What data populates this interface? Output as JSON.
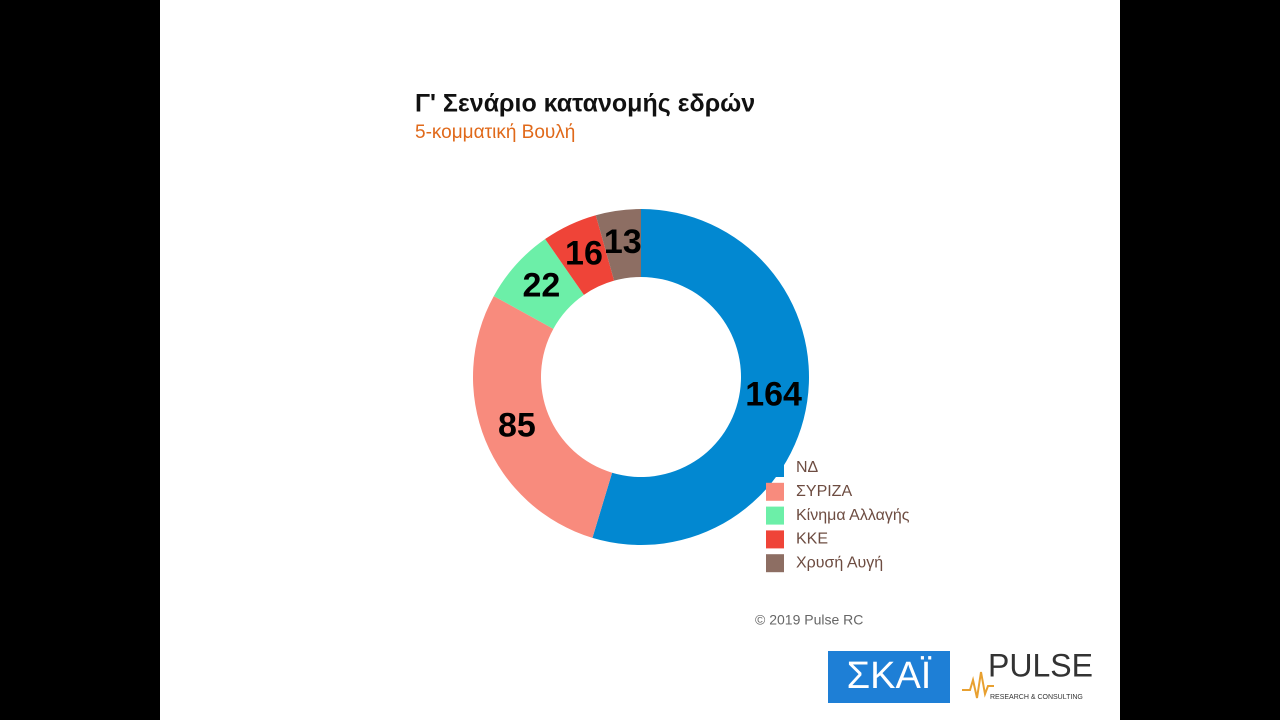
{
  "chart_data": {
    "type": "donut",
    "title": "Γ' Σενάριο κατανομής εδρών",
    "subtitle": "5-κομματική Βουλή",
    "categories": [
      "ΝΔ",
      "ΣΥΡΙΖΑ",
      "Κίνημα Αλλαγής",
      "ΚΚΕ",
      "Χρυσή Αυγή"
    ],
    "values": [
      164,
      85,
      22,
      16,
      13
    ],
    "colors": [
      "#0288d1",
      "#f88b7d",
      "#6cefa8",
      "#ef4438",
      "#8d6e63"
    ],
    "legend": "bottom-right",
    "source": "© 2019 Pulse RC"
  },
  "logos": {
    "skai": "ΣΚΑΪ",
    "pulse": "PULSE",
    "pulse_tagline": "RESEARCH & CONSULTING"
  }
}
